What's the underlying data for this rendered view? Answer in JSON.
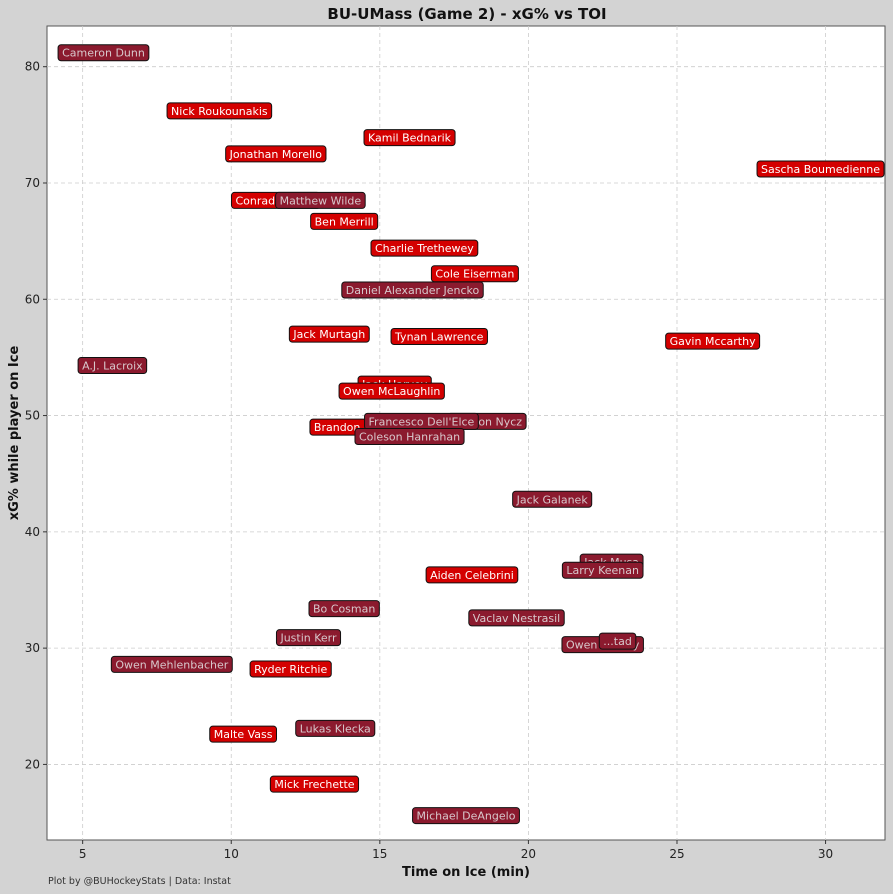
{
  "caption": "Plot by @BUHockeyStats | Data: Instat",
  "colors": {
    "background": "#d3d3d3",
    "plot_bg": "#ffffff",
    "grid": "#cccccc",
    "bu_fill": "#d40000",
    "bu_text": "#ffffff",
    "umass_fill": "#8b1a2e",
    "umass_text": "#d8c8cc"
  },
  "chart_data": {
    "type": "scatter",
    "title": "BU-UMass (Game 2) - xG% vs TOI",
    "xlabel": "Time on Ice (min)",
    "ylabel": "xG% while player on Ice",
    "xlim": [
      3.8,
      32
    ],
    "ylim": [
      13.5,
      83.5
    ],
    "xticks": [
      5,
      10,
      15,
      20,
      25,
      30
    ],
    "yticks": [
      20,
      30,
      40,
      50,
      60,
      70,
      80
    ],
    "grid": true,
    "points": [
      {
        "name": "Cameron Dunn",
        "x": 5.7,
        "y": 81.2,
        "team": "umass"
      },
      {
        "name": "Nick Roukounakis",
        "x": 9.6,
        "y": 76.2,
        "team": "bu"
      },
      {
        "name": "Kamil Bednarik",
        "x": 16.0,
        "y": 73.9,
        "team": "bu"
      },
      {
        "name": "Jonathan Morello",
        "x": 11.5,
        "y": 72.5,
        "team": "bu"
      },
      {
        "name": "Sascha Boumedienne",
        "x": 30.0,
        "y": 71.2,
        "team": "bu"
      },
      {
        "name": "Conrad Fondrk",
        "x": 11.5,
        "y": 68.5,
        "team": "bu"
      },
      {
        "name": "Matthew Wilde",
        "x": 13.0,
        "y": 68.5,
        "team": "umass"
      },
      {
        "name": "Ben Merrill",
        "x": 13.8,
        "y": 66.7,
        "team": "bu"
      },
      {
        "name": "Charlie Trethewey",
        "x": 16.5,
        "y": 64.4,
        "team": "bu"
      },
      {
        "name": "Cole Eiserman",
        "x": 18.2,
        "y": 62.2,
        "team": "bu"
      },
      {
        "name": "Daniel Alexander Jencko",
        "x": 16.1,
        "y": 60.8,
        "team": "umass"
      },
      {
        "name": "Jack Murtagh",
        "x": 13.3,
        "y": 57.0,
        "team": "bu"
      },
      {
        "name": "Tynan Lawrence",
        "x": 17.0,
        "y": 56.8,
        "team": "bu"
      },
      {
        "name": "Gavin Mccarthy",
        "x": 26.2,
        "y": 56.4,
        "team": "bu"
      },
      {
        "name": "A.J. Lacroix",
        "x": 6.0,
        "y": 54.3,
        "team": "umass"
      },
      {
        "name": "Jack Harvey",
        "x": 15.5,
        "y": 52.7,
        "team": "bu"
      },
      {
        "name": "Owen McLaughlin",
        "x": 15.4,
        "y": 52.1,
        "team": "bu"
      },
      {
        "name": "Landon Nycz",
        "x": 18.6,
        "y": 49.5,
        "team": "umass"
      },
      {
        "name": "Brandon Holt",
        "x": 14.0,
        "y": 49.0,
        "team": "bu"
      },
      {
        "name": "Francesco Dell'Elce",
        "x": 16.4,
        "y": 49.5,
        "team": "umass"
      },
      {
        "name": "Coleson Hanrahan",
        "x": 16.0,
        "y": 48.2,
        "team": "umass"
      },
      {
        "name": "Jack Galanek",
        "x": 20.8,
        "y": 42.8,
        "team": "umass"
      },
      {
        "name": "Jack Musa",
        "x": 22.8,
        "y": 37.4,
        "team": "umass"
      },
      {
        "name": "Larry Keenan",
        "x": 22.5,
        "y": 36.7,
        "team": "umass"
      },
      {
        "name": "Aiden Celebrini",
        "x": 18.1,
        "y": 36.3,
        "team": "bu"
      },
      {
        "name": "Bo Cosman",
        "x": 13.8,
        "y": 33.4,
        "team": "umass"
      },
      {
        "name": "Vaclav Nestrasil",
        "x": 19.6,
        "y": 32.6,
        "team": "umass"
      },
      {
        "name": "Justin Kerr",
        "x": 12.6,
        "y": 30.9,
        "team": "umass"
      },
      {
        "name": "Owen Murray",
        "x": 22.5,
        "y": 30.3,
        "team": "umass"
      },
      {
        "name": "Owen Mehlenbacher",
        "x": 8.0,
        "y": 28.6,
        "team": "umass"
      },
      {
        "name": "Ryder Ritchie",
        "x": 12.0,
        "y": 28.2,
        "team": "bu"
      },
      {
        "name": "Lukas Klecka",
        "x": 13.5,
        "y": 23.1,
        "team": "umass"
      },
      {
        "name": "Malte Vass",
        "x": 10.4,
        "y": 22.6,
        "team": "bu"
      },
      {
        "name": "Mick Frechette",
        "x": 12.8,
        "y": 18.3,
        "team": "bu"
      },
      {
        "name": "Michael DeAngelo",
        "x": 17.9,
        "y": 15.6,
        "team": "umass"
      }
    ],
    "partial_labels": [
      {
        "text": "...tad",
        "x": 23.0,
        "y": 30.6,
        "team": "umass"
      }
    ]
  }
}
